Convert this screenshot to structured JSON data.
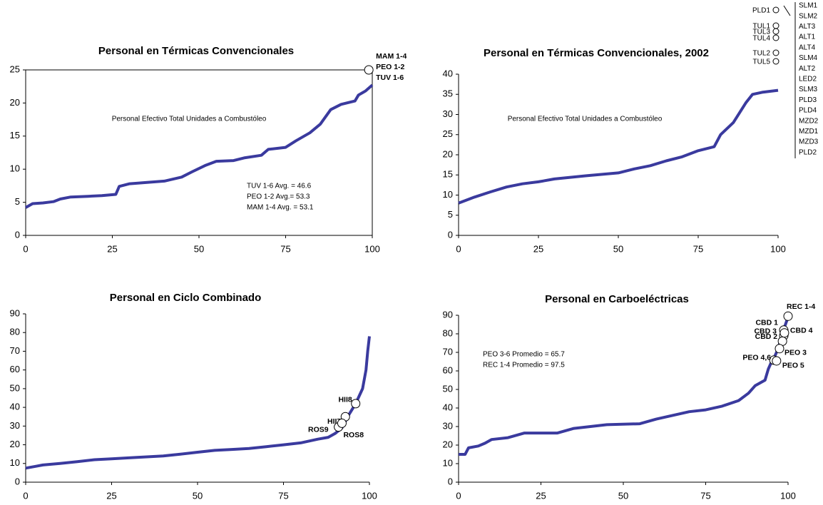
{
  "chart_data": [
    {
      "type": "line",
      "title": "Personal en Térmicas Convencionales",
      "frame": true,
      "color": "#3a3a9e",
      "annotation": "Personal Efectivo Total Unidades a Combustóleo",
      "notes": [
        "TUV 1-6 Avg. = 46.6",
        "PEO 1-2 Avg.= 53.3",
        "MAM 1-4 Avg. = 53.1"
      ],
      "x": [
        0,
        2,
        5,
        8,
        10,
        13,
        18,
        22,
        26,
        27,
        30,
        35,
        40,
        45,
        48,
        52,
        55,
        60,
        63,
        68,
        70,
        75,
        78,
        82,
        85,
        88,
        91,
        95,
        96,
        98,
        100
      ],
      "values": [
        4.2,
        4.8,
        4.9,
        5.1,
        5.5,
        5.8,
        5.9,
        6,
        6.2,
        7.4,
        7.8,
        8,
        8.2,
        8.8,
        9.6,
        10.6,
        11.2,
        11.3,
        11.7,
        12.1,
        13,
        13.3,
        14.3,
        15.5,
        16.8,
        19,
        19.8,
        20.3,
        21.2,
        21.8,
        22.7
      ],
      "points": [
        {
          "x": 99,
          "y": 25,
          "labels": [
            "MAM 1-4",
            "PEO 1-2",
            "TUV 1-6"
          ]
        }
      ],
      "xlim": [
        0,
        100
      ],
      "xticks": [
        0,
        25,
        50,
        75,
        100
      ],
      "ylim": [
        0,
        25
      ],
      "yticks": [
        0,
        5,
        10,
        15,
        20,
        25
      ]
    },
    {
      "type": "line",
      "title": "Personal en Térmicas Convencionales, 2002",
      "frame": false,
      "color": "#3a3a9e",
      "annotation": "Personal Efectivo Total Unidades a Combustóleo",
      "unit_labels_left": [
        "PLD1",
        "TUL1",
        "TUL3",
        "TUL4",
        "TUL2",
        "TUL5"
      ],
      "unit_labels_right": [
        "SLM1",
        "SLM2",
        "ALT3",
        "ALT1",
        "ALT4",
        "SLM4",
        "ALT2",
        "LED2",
        "SLM3",
        "PLD3",
        "PLD4",
        "MZD2",
        "MZD1",
        "MZD3",
        "PLD2"
      ],
      "x": [
        0,
        5,
        10,
        15,
        20,
        25,
        30,
        40,
        50,
        55,
        60,
        65,
        70,
        75,
        80,
        82,
        86,
        90,
        92,
        95,
        100
      ],
      "values": [
        8,
        9.5,
        10.8,
        12,
        12.8,
        13.3,
        14,
        14.8,
        15.5,
        16.5,
        17.3,
        18.5,
        19.5,
        21,
        22,
        25,
        28,
        33,
        35,
        35.5,
        36
      ],
      "xlim": [
        0,
        100
      ],
      "xticks": [
        0,
        25,
        50,
        75,
        100
      ],
      "ylim": [
        0,
        40
      ],
      "yticks": [
        0,
        5,
        10,
        15,
        20,
        25,
        30,
        35,
        40
      ]
    },
    {
      "type": "line",
      "title": "Personal en Ciclo Combinado",
      "frame": false,
      "color": "#3a3a9e",
      "x": [
        0,
        3,
        5,
        10,
        15,
        20,
        25,
        30,
        40,
        45,
        50,
        55,
        60,
        65,
        70,
        75,
        80,
        85,
        88,
        90,
        92,
        94,
        96,
        98,
        99,
        99.5,
        100
      ],
      "values": [
        7.5,
        8.5,
        9.2,
        10,
        11,
        12,
        12.5,
        13,
        14,
        15,
        16,
        17,
        17.5,
        18,
        19,
        20,
        21,
        23,
        24,
        26,
        29,
        36,
        42,
        50,
        60,
        70,
        78
      ],
      "points": [
        {
          "x": 96,
          "y": 42,
          "labels": [
            "HII8"
          ]
        },
        {
          "x": 93,
          "y": 35,
          "labels": [
            "HII7"
          ]
        },
        {
          "x": 91,
          "y": 29.5,
          "labels": [
            "ROS9"
          ]
        },
        {
          "x": 92,
          "y": 31.5,
          "labels": [
            "ROS8"
          ]
        }
      ],
      "xlim": [
        0,
        100
      ],
      "xticks": [
        0,
        25,
        50,
        75,
        100
      ],
      "ylim": [
        0,
        90
      ],
      "yticks": [
        0,
        10,
        20,
        30,
        40,
        50,
        60,
        70,
        80,
        90
      ]
    },
    {
      "type": "line",
      "title": "Personal en Carboeléctricas",
      "frame": false,
      "color": "#3a3a9e",
      "notes": [
        "PEO 3-6 Promedio = 65.7",
        "REC 1-4 Promedio = 97.5"
      ],
      "x": [
        0,
        2,
        3,
        6,
        8,
        10,
        15,
        20,
        30,
        35,
        40,
        45,
        55,
        60,
        70,
        75,
        80,
        85,
        88,
        90,
        93,
        94,
        95,
        96,
        97,
        98,
        99,
        100
      ],
      "values": [
        15,
        15,
        18.5,
        19.5,
        21,
        23,
        24,
        26.5,
        26.5,
        29,
        30,
        31,
        31.5,
        34,
        38,
        39,
        41,
        44,
        48,
        52,
        55,
        61,
        65,
        68,
        72,
        78,
        84,
        89
      ],
      "points": [
        {
          "x": 100,
          "y": 89.5,
          "labels": [
            "REC 1-4"
          ]
        },
        {
          "x": 98.7,
          "y": 82,
          "labels": [
            "CBD 1"
          ]
        },
        {
          "x": 98.7,
          "y": 79,
          "labels": [
            "CBD 3"
          ]
        },
        {
          "x": 98.3,
          "y": 76,
          "labels": [
            "CBD 2"
          ]
        },
        {
          "x": 98.9,
          "y": 80.5,
          "labels": [
            "CBD 4"
          ]
        },
        {
          "x": 97.4,
          "y": 72,
          "labels": [
            "PEO 3"
          ]
        },
        {
          "x": 95.7,
          "y": 65.8,
          "labels": [
            "PEO 4,6"
          ]
        },
        {
          "x": 96.5,
          "y": 65.4,
          "labels": [
            "PEO 5"
          ]
        }
      ],
      "xlim": [
        0,
        100
      ],
      "xticks": [
        0,
        25,
        50,
        75,
        100
      ],
      "ylim": [
        0,
        90
      ],
      "yticks": [
        0,
        10,
        20,
        30,
        40,
        50,
        60,
        70,
        80,
        90
      ]
    }
  ]
}
